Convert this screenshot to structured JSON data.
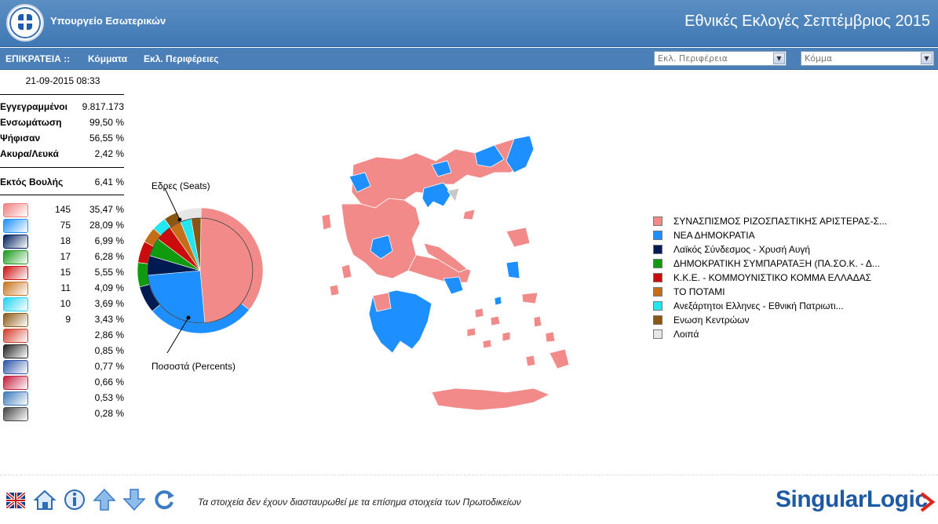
{
  "header": {
    "ministry": "Υπουργείο Εσωτερικών",
    "title": "Εθνικές Εκλογές Σεπτέμβριος 2015"
  },
  "nav": {
    "scope": "ΕΠΙΚΡΑΤΕΙΑ ::",
    "parties": "Κόμματα",
    "regions": "Εκλ. Περιφέρειες",
    "region_select": "Εκλ. Περιφέρεια",
    "party_select": "Κόμμα"
  },
  "stats": {
    "timestamp": "21-09-2015 08:33",
    "registered_label": "Εγγεγραμμένοι",
    "registered_value": "9.817.173",
    "integration_label": "Ενσωμάτωση",
    "integration_value": "99,50 %",
    "voted_label": "Ψήφισαν",
    "voted_value": "56,55 %",
    "invalid_label": "Ακυρα/Λευκά",
    "invalid_value": "2,42 %",
    "outside_label": "Εκτός Βουλής",
    "outside_value": "6,41 %"
  },
  "parties": [
    {
      "seats": "145",
      "pct": "35,47 %",
      "color": "#f08080"
    },
    {
      "seats": "75",
      "pct": "28,09 %",
      "color": "#1e90ff"
    },
    {
      "seats": "18",
      "pct": "6,99 %",
      "color": "#001f5c"
    },
    {
      "seats": "17",
      "pct": "6,28 %",
      "color": "#1a9a1a"
    },
    {
      "seats": "15",
      "pct": "5,55 %",
      "color": "#cc1111"
    },
    {
      "seats": "11",
      "pct": "4,09 %",
      "color": "#c8731e"
    },
    {
      "seats": "10",
      "pct": "3,69 %",
      "color": "#1fd4f0"
    },
    {
      "seats": "9",
      "pct": "3,43 %",
      "color": "#8b5a14"
    },
    {
      "seats": "",
      "pct": "2,86 %",
      "color": "#d23b2a"
    },
    {
      "seats": "",
      "pct": "0,85 %",
      "color": "#222222"
    },
    {
      "seats": "",
      "pct": "0,77 %",
      "color": "#2c55a8"
    },
    {
      "seats": "",
      "pct": "0,66 %",
      "color": "#c41a3c"
    },
    {
      "seats": "",
      "pct": "0,53 %",
      "color": "#3c7ab8"
    },
    {
      "seats": "",
      "pct": "0,28 %",
      "color": "#444444"
    }
  ],
  "chart_data": {
    "type": "pie",
    "labels": {
      "seats": "Εδρες (Seats)",
      "percents": "Ποσοστά (Percents)"
    },
    "series": [
      {
        "name": "Εδρες (Seats)",
        "values": [
          145,
          75,
          18,
          17,
          15,
          11,
          10,
          9,
          0
        ]
      },
      {
        "name": "Ποσοστά (Percents)",
        "values": [
          35.47,
          28.09,
          6.99,
          6.28,
          5.55,
          4.09,
          3.69,
          3.43,
          6.41
        ]
      }
    ],
    "colors": [
      "#f38a8a",
      "#1e8fff",
      "#001a52",
      "#109a10",
      "#cc0c0c",
      "#c46f18",
      "#22e6f0",
      "#8b5612",
      "#e6e6e6"
    ]
  },
  "legend": [
    {
      "label": "ΣΥΝΑΣΠΙΣΜΟΣ ΡΙΖΟΣΠΑΣΤΙΚΗΣ ΑΡΙΣΤΕΡΑΣ-Σ...",
      "color": "#f38a8a"
    },
    {
      "label": "ΝΕΑ ΔΗΜΟΚΡΑΤΙΑ",
      "color": "#1e8fff"
    },
    {
      "label": "Λαϊκός Σύνδεσμος - Χρυσή Αυγή",
      "color": "#001a52"
    },
    {
      "label": "ΔΗΜΟΚΡΑΤΙΚΗ ΣΥΜΠΑΡΑΤΑΞΗ (ΠΑ.ΣΟ.Κ. - Δ...",
      "color": "#109a10"
    },
    {
      "label": "Κ.Κ.Ε. - ΚΟΜΜΟΥΝΙΣΤΙΚΟ ΚΟΜΜΑ ΕΛΛΑΔΑΣ",
      "color": "#cc0c0c"
    },
    {
      "label": "ΤΟ ΠΟΤΑΜΙ",
      "color": "#c46f18"
    },
    {
      "label": "Ανεξάρτητοι Ελληνες - Εθνική Πατριωτι...",
      "color": "#22e6f0"
    },
    {
      "label": "Ενωση Κεντρώων",
      "color": "#8b5612"
    },
    {
      "label": "Λοιπά",
      "color": "#e6e6e6"
    }
  ],
  "map": {
    "colors": {
      "syriza": "#f38a8a",
      "nd": "#1e8fff",
      "other": "#c8c8c8"
    }
  },
  "footer": {
    "disclaimer": "Τα στοιχεία δεν έχουν διασταυρωθεί με τα επίσημα στοιχεία των Πρωτοδικείων",
    "brand": "SingularLogic",
    "icons": [
      "uk-flag-icon",
      "home-icon",
      "info-icon",
      "arrow-up-icon",
      "arrow-down-icon",
      "refresh-icon"
    ]
  }
}
